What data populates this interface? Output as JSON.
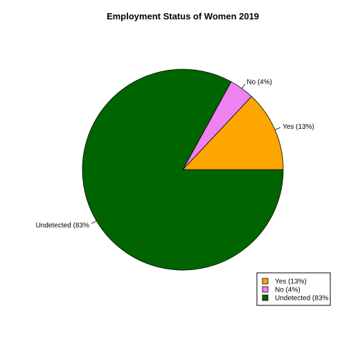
{
  "chart_data": {
    "type": "pie",
    "title": "Employment Status of Women 2019",
    "slices": [
      {
        "label": "Yes (13%)",
        "value": 13,
        "color": "#FFA500"
      },
      {
        "label": "No (4%)",
        "value": 4,
        "color": "#EE82EE"
      },
      {
        "label": "Undetected (83%",
        "value": 83,
        "color": "#006400"
      }
    ],
    "start_angle_deg": 0,
    "direction": "counterclockwise",
    "legend": {
      "placement": "bottom-right",
      "entries": [
        "Yes (13%)",
        "No (4%)",
        "Undetected (83%"
      ]
    }
  }
}
